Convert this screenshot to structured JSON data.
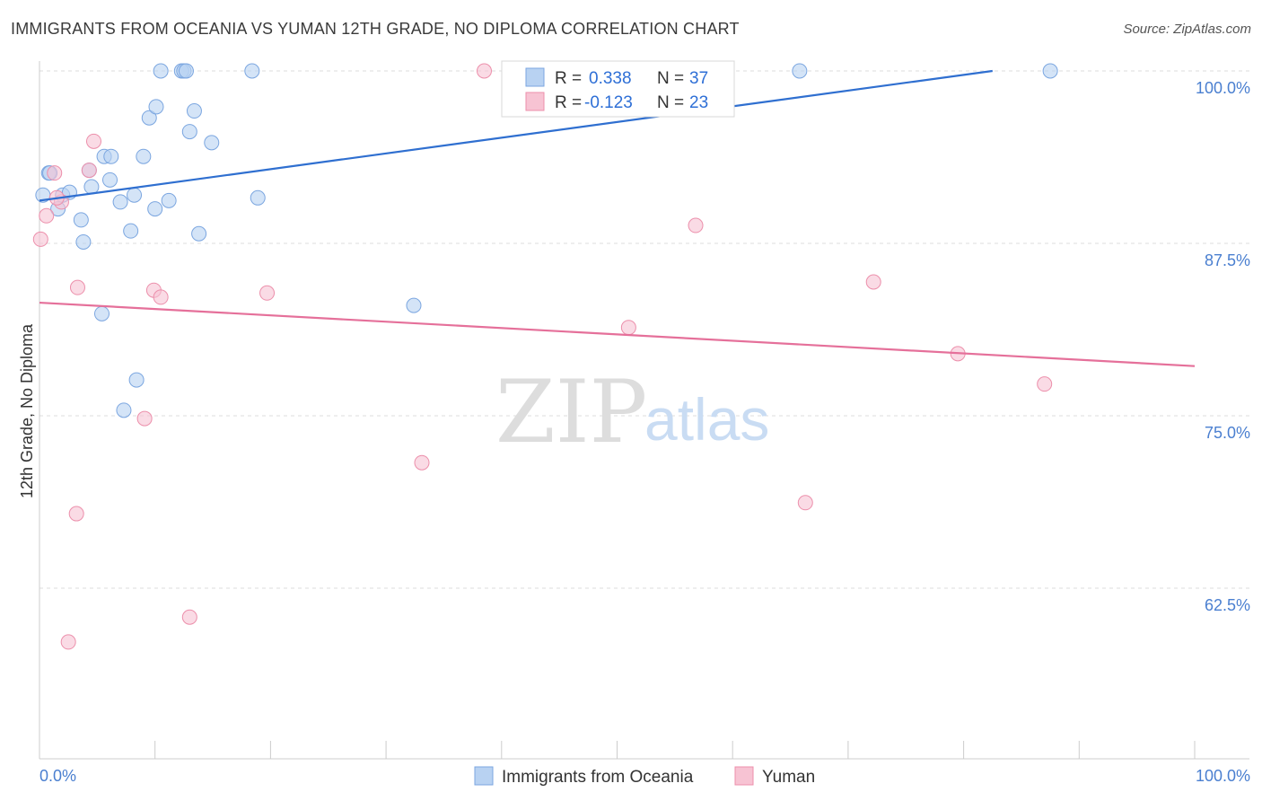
{
  "title": "IMMIGRANTS FROM OCEANIA VS YUMAN 12TH GRADE, NO DIPLOMA CORRELATION CHART",
  "source": "Source: ZipAtlas.com",
  "watermark": {
    "zip": "ZIP",
    "atlas": "atlas"
  },
  "colors": {
    "blue_fill": "#b8d2f2",
    "blue_stroke": "#7ba6e0",
    "blue_line": "#2f6fd0",
    "pink_fill": "#f7c3d3",
    "pink_stroke": "#ec8fab",
    "pink_line": "#e5709a",
    "grid": "#dddddd",
    "axis_text": "#4a7fd0"
  },
  "legend": {
    "row1": {
      "r_label": "R =",
      "r_value": "0.338",
      "n_label": "N =",
      "n_value": "37"
    },
    "row2": {
      "r_label": "R =",
      "r_value": "-0.123",
      "n_label": "N =",
      "n_value": "23"
    }
  },
  "chart_data": {
    "type": "scatter",
    "xlabel": "",
    "ylabel": "12th Grade, No Diploma",
    "xlim": [
      0,
      100
    ],
    "ylim": [
      50,
      101
    ],
    "y_ticks": [
      62.5,
      75.0,
      87.5,
      100.0
    ],
    "y_tick_labels": [
      "62.5%",
      "75.0%",
      "87.5%",
      "100.0%"
    ],
    "x_tick_labels": [
      "0.0%",
      "100.0%"
    ],
    "grid": true,
    "legend_position": "top-center",
    "series": [
      {
        "name": "Immigrants from Oceania",
        "color": "#b8d2f2",
        "trend": [
          [
            0,
            90.6
          ],
          [
            82.5,
            100.0
          ]
        ],
        "points": [
          [
            0.3,
            91.0
          ],
          [
            0.8,
            92.6
          ],
          [
            2.0,
            91.0
          ],
          [
            2.6,
            91.2
          ],
          [
            1.6,
            90.0
          ],
          [
            3.6,
            89.2
          ],
          [
            3.8,
            87.6
          ],
          [
            4.3,
            92.8
          ],
          [
            4.5,
            91.6
          ],
          [
            5.4,
            82.4
          ],
          [
            5.6,
            93.8
          ],
          [
            6.2,
            93.8
          ],
          [
            6.1,
            92.1
          ],
          [
            7.0,
            90.5
          ],
          [
            7.9,
            88.4
          ],
          [
            8.2,
            91.0
          ],
          [
            8.4,
            77.6
          ],
          [
            7.3,
            75.4
          ],
          [
            9.0,
            93.8
          ],
          [
            9.5,
            96.6
          ],
          [
            10.1,
            97.4
          ],
          [
            10.0,
            90.0
          ],
          [
            10.5,
            100.0
          ],
          [
            11.2,
            90.6
          ],
          [
            12.3,
            100.0
          ],
          [
            12.5,
            100.0
          ],
          [
            12.7,
            100.0
          ],
          [
            13.0,
            95.6
          ],
          [
            13.4,
            97.1
          ],
          [
            13.8,
            88.2
          ],
          [
            14.9,
            94.8
          ],
          [
            18.4,
            100.0
          ],
          [
            18.9,
            90.8
          ],
          [
            32.4,
            83.0
          ],
          [
            65.8,
            100.0
          ],
          [
            87.5,
            100.0
          ],
          [
            0.9,
            92.6
          ]
        ]
      },
      {
        "name": "Yuman",
        "color": "#f7c3d3",
        "trend": [
          [
            0,
            83.2
          ],
          [
            100,
            78.6
          ]
        ],
        "points": [
          [
            0.1,
            87.8
          ],
          [
            0.6,
            89.5
          ],
          [
            1.3,
            92.6
          ],
          [
            1.9,
            90.5
          ],
          [
            2.5,
            58.6
          ],
          [
            3.2,
            67.9
          ],
          [
            3.3,
            84.3
          ],
          [
            4.3,
            92.8
          ],
          [
            4.7,
            94.9
          ],
          [
            9.1,
            74.8
          ],
          [
            9.9,
            84.1
          ],
          [
            10.5,
            83.6
          ],
          [
            13.0,
            60.4
          ],
          [
            19.7,
            83.9
          ],
          [
            33.1,
            71.6
          ],
          [
            38.5,
            100.0
          ],
          [
            51.0,
            81.4
          ],
          [
            56.8,
            88.8
          ],
          [
            66.3,
            68.7
          ],
          [
            72.2,
            84.7
          ],
          [
            79.5,
            79.5
          ],
          [
            87.0,
            77.3
          ],
          [
            1.5,
            90.8
          ]
        ]
      }
    ]
  }
}
